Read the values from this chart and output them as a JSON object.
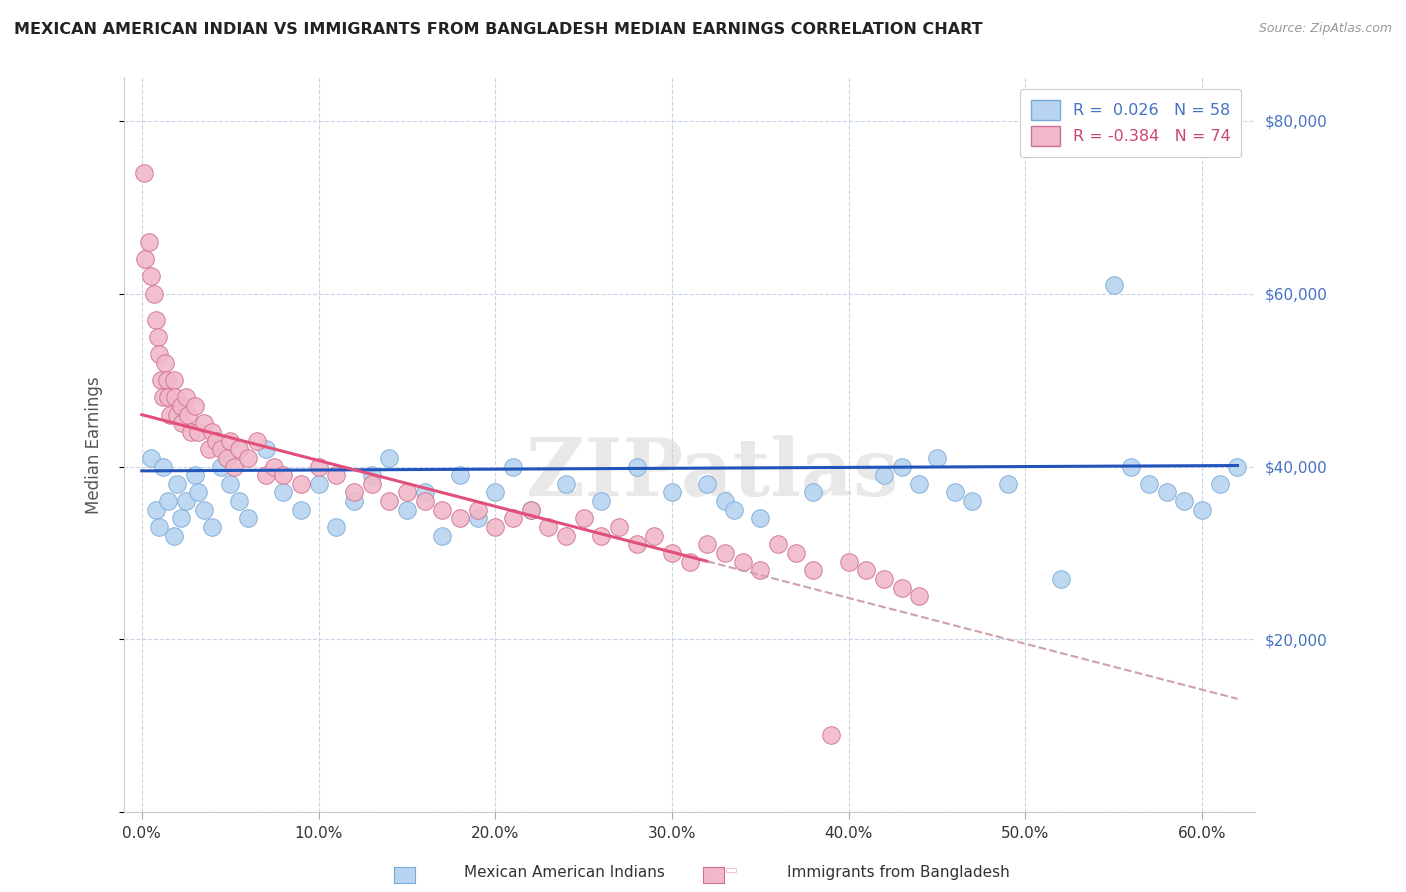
{
  "title": "MEXICAN AMERICAN INDIAN VS IMMIGRANTS FROM BANGLADESH MEDIAN EARNINGS CORRELATION CHART",
  "source": "Source: ZipAtlas.com",
  "ylabel": "Median Earnings",
  "series": [
    {
      "name": "Mexican American Indians",
      "color": "#b8d4f0",
      "edge_color": "#7aaad8",
      "R": 0.026,
      "N": 58,
      "line_color": "#2255bb",
      "points_x": [
        0.5,
        0.8,
        1.0,
        1.2,
        1.5,
        1.8,
        2.0,
        2.2,
        2.5,
        3.0,
        3.2,
        3.5,
        4.0,
        4.5,
        5.0,
        5.5,
        6.0,
        7.0,
        8.0,
        9.0,
        10.0,
        11.0,
        12.0,
        13.0,
        14.0,
        15.0,
        16.0,
        17.0,
        18.0,
        19.0,
        20.0,
        21.0,
        22.0,
        24.0,
        26.0,
        28.0,
        30.0,
        32.0,
        33.0,
        33.5,
        35.0,
        38.0,
        42.0,
        43.0,
        44.0,
        45.0,
        46.0,
        47.0,
        49.0,
        52.0,
        55.0,
        56.0,
        57.0,
        58.0,
        59.0,
        60.0,
        61.0,
        62.0
      ],
      "points_y": [
        41000,
        35000,
        33000,
        40000,
        36000,
        32000,
        38000,
        34000,
        36000,
        39000,
        37000,
        35000,
        33000,
        40000,
        38000,
        36000,
        34000,
        42000,
        37000,
        35000,
        38000,
        33000,
        36000,
        39000,
        41000,
        35000,
        37000,
        32000,
        39000,
        34000,
        37000,
        40000,
        35000,
        38000,
        36000,
        40000,
        37000,
        38000,
        36000,
        35000,
        34000,
        37000,
        39000,
        40000,
        38000,
        41000,
        37000,
        36000,
        38000,
        27000,
        61000,
        40000,
        38000,
        37000,
        36000,
        35000,
        38000,
        40000
      ]
    },
    {
      "name": "Immigrants from Bangladesh",
      "color": "#f0b8c8",
      "edge_color": "#d07090",
      "R": -0.384,
      "N": 74,
      "line_color": "#e0507a",
      "points_x": [
        0.1,
        0.2,
        0.4,
        0.5,
        0.7,
        0.8,
        0.9,
        1.0,
        1.1,
        1.2,
        1.3,
        1.4,
        1.5,
        1.6,
        1.8,
        1.9,
        2.0,
        2.2,
        2.3,
        2.5,
        2.6,
        2.8,
        3.0,
        3.2,
        3.5,
        3.8,
        4.0,
        4.2,
        4.5,
        4.8,
        5.0,
        5.2,
        5.5,
        6.0,
        6.5,
        7.0,
        7.5,
        8.0,
        9.0,
        10.0,
        11.0,
        12.0,
        13.0,
        14.0,
        15.0,
        16.0,
        17.0,
        18.0,
        19.0,
        20.0,
        21.0,
        22.0,
        23.0,
        24.0,
        25.0,
        26.0,
        27.0,
        28.0,
        29.0,
        30.0,
        31.0,
        32.0,
        33.0,
        34.0,
        35.0,
        36.0,
        37.0,
        38.0,
        39.0,
        40.0,
        41.0,
        42.0,
        43.0,
        44.0
      ],
      "points_y": [
        74000,
        64000,
        66000,
        62000,
        60000,
        57000,
        55000,
        53000,
        50000,
        48000,
        52000,
        50000,
        48000,
        46000,
        50000,
        48000,
        46000,
        47000,
        45000,
        48000,
        46000,
        44000,
        47000,
        44000,
        45000,
        42000,
        44000,
        43000,
        42000,
        41000,
        43000,
        40000,
        42000,
        41000,
        43000,
        39000,
        40000,
        39000,
        38000,
        40000,
        39000,
        37000,
        38000,
        36000,
        37000,
        36000,
        35000,
        34000,
        35000,
        33000,
        34000,
        35000,
        33000,
        32000,
        34000,
        32000,
        33000,
        31000,
        32000,
        30000,
        29000,
        31000,
        30000,
        29000,
        28000,
        31000,
        30000,
        28000,
        9000,
        29000,
        28000,
        27000,
        26000,
        25000
      ]
    }
  ],
  "xlim": [
    -1,
    63
  ],
  "ylim": [
    0,
    85000
  ],
  "xticks": [
    0,
    10,
    20,
    30,
    40,
    50,
    60
  ],
  "xtick_labels": [
    "0.0%",
    "10.0%",
    "20.0%",
    "30.0%",
    "40.0%",
    "50.0%",
    "60.0%"
  ],
  "yticks": [
    0,
    20000,
    40000,
    60000,
    80000
  ],
  "ytick_labels_right": [
    "",
    "$20,000",
    "$40,000",
    "$60,000",
    "$80,000"
  ],
  "watermark_text": "ZIPatlas",
  "background_color": "#ffffff",
  "grid_color": "#c8d4e8",
  "title_color": "#222222",
  "right_tick_color": "#4472c4",
  "blue_line_color": "#2255bb",
  "pink_solid_color": "#e0507a",
  "pink_dash_color": "#d0a0b0",
  "blue_trend_start": 0,
  "blue_trend_end": 62,
  "blue_intercept": 39500,
  "blue_slope": 10,
  "pink_solid_start": 0,
  "pink_solid_end": 32,
  "pink_dash_start": 32,
  "pink_dash_end": 62,
  "pink_intercept": 46000,
  "pink_slope": -530,
  "legend_blue_r": "R =  0.026",
  "legend_blue_n": "N = 58",
  "legend_pink_r": "R = -0.384",
  "legend_pink_n": "N = 74"
}
